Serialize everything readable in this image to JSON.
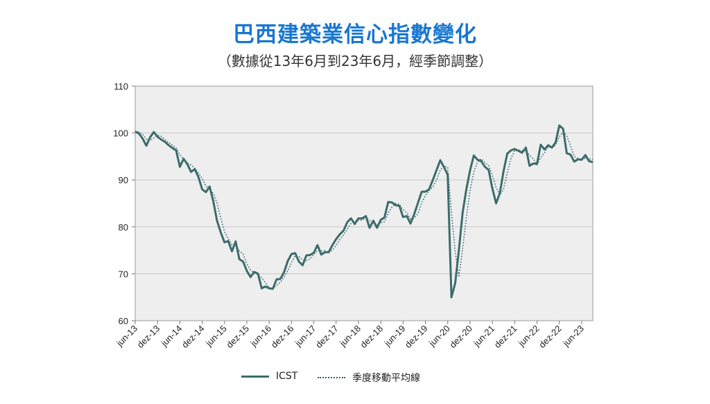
{
  "title": "巴西建築業信心指數變化",
  "subtitle": "（數據從13年6月到23年6月，經季節調整）",
  "colors": {
    "title": "#1877d2",
    "series": "#3c6b6b",
    "plot_bg": "#eeeeee",
    "grid": "#c8c8c8"
  },
  "chart_data": {
    "type": "line",
    "ylim": [
      60,
      110
    ],
    "yticks": [
      60,
      70,
      80,
      90,
      100,
      110
    ],
    "xlabel": "",
    "ylabel": "",
    "grid": true,
    "legend_position": "bottom",
    "x_start": "jun-13",
    "x_end": "jun-23",
    "x_tick_labels": [
      "jun-13",
      "dez-13",
      "jun-14",
      "dez-14",
      "jun-15",
      "dez-15",
      "jun-16",
      "dez-16",
      "jun-17",
      "dez-17",
      "jun-18",
      "dez-18",
      "jun-19",
      "dez-19",
      "jun-20",
      "dez-20",
      "jun-21",
      "dez-21",
      "jun-22",
      "dez-22",
      "jun-23"
    ],
    "series": [
      {
        "name": "ICST",
        "style": "solid",
        "values": [
          100.3,
          99.9,
          98.8,
          97.3,
          99.1,
          100.2,
          99.2,
          98.6,
          98.1,
          97.4,
          96.8,
          96.3,
          92.8,
          94.5,
          93.4,
          91.7,
          92.3,
          90.6,
          88.0,
          87.4,
          88.6,
          85.4,
          81.3,
          78.8,
          76.7,
          77.0,
          74.8,
          76.9,
          73.1,
          72.6,
          70.6,
          69.3,
          70.4,
          70.0,
          66.9,
          67.3,
          66.9,
          66.8,
          68.8,
          68.9,
          70.3,
          72.7,
          74.2,
          74.4,
          72.6,
          71.8,
          73.9,
          74.0,
          74.5,
          76.1,
          74.1,
          74.6,
          74.6,
          76.1,
          77.4,
          78.4,
          79.2,
          81.0,
          81.8,
          80.6,
          81.8,
          81.8,
          82.3,
          79.8,
          81.3,
          79.8,
          81.5,
          82.0,
          85.3,
          85.2,
          84.6,
          84.5,
          82.1,
          82.3,
          80.7,
          82.7,
          85.1,
          87.5,
          87.5,
          88.0,
          90.0,
          92.1,
          94.2,
          92.7,
          91.1,
          65.0,
          68.0,
          75.0,
          83.0,
          88.0,
          92.0,
          95.2,
          94.3,
          94.0,
          92.8,
          92.1,
          88.2,
          85.0,
          87.2,
          91.8,
          95.6,
          96.3,
          96.6,
          96.2,
          95.8,
          96.9,
          93.0,
          93.5,
          93.4,
          97.5,
          96.5,
          97.4,
          96.9,
          98.0,
          101.6,
          100.9,
          95.7,
          95.4,
          93.9,
          94.4,
          94.3,
          95.3,
          94.0,
          93.8
        ]
      },
      {
        "name": "季度移動平均線",
        "style": "dotted",
        "values": [
          100.4,
          100.2,
          99.7,
          98.7,
          98.4,
          98.9,
          99.5,
          99.3,
          98.6,
          98.0,
          97.4,
          96.8,
          95.3,
          94.5,
          93.6,
          93.2,
          92.5,
          91.5,
          90.3,
          88.7,
          88.0,
          87.1,
          85.1,
          81.8,
          79.0,
          77.5,
          76.2,
          76.2,
          74.9,
          74.2,
          72.1,
          70.8,
          70.1,
          69.9,
          69.1,
          68.1,
          67.0,
          67.0,
          67.5,
          68.2,
          69.3,
          70.6,
          72.4,
          73.8,
          73.7,
          72.9,
          72.8,
          73.2,
          74.1,
          74.9,
          74.9,
          74.9,
          74.4,
          75.1,
          76.0,
          77.3,
          78.3,
          79.5,
          80.7,
          81.1,
          81.4,
          81.4,
          82.0,
          81.3,
          81.1,
          80.3,
          80.9,
          81.1,
          82.9,
          84.2,
          85.0,
          84.8,
          83.7,
          83.0,
          81.7,
          81.9,
          82.8,
          85.1,
          86.7,
          87.7,
          88.5,
          90.0,
          92.1,
          93.0,
          92.7,
          83.0,
          74.7,
          69.3,
          75.3,
          82.0,
          87.7,
          91.7,
          93.8,
          94.5,
          93.7,
          93.0,
          91.0,
          88.4,
          86.8,
          88.0,
          91.5,
          94.6,
          96.2,
          96.4,
          96.2,
          96.3,
          95.2,
          94.5,
          93.3,
          94.8,
          95.8,
          97.1,
          96.9,
          97.4,
          99.2,
          100.2,
          99.4,
          97.3,
          95.0,
          94.6,
          94.2,
          94.7,
          94.5,
          94.4
        ]
      }
    ]
  }
}
